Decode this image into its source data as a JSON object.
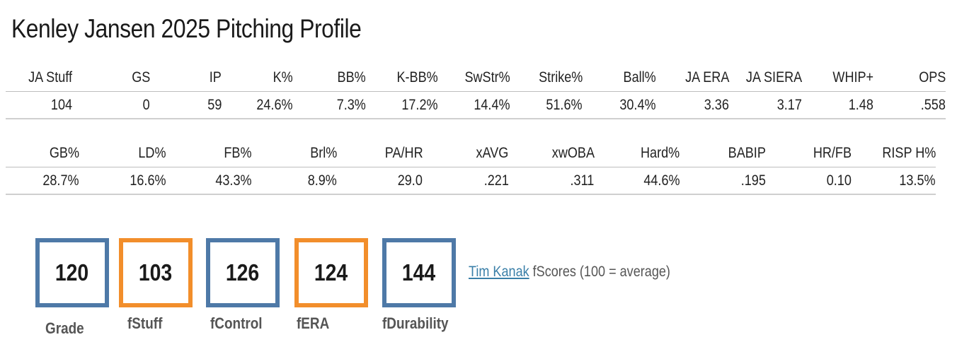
{
  "title": "Kenley Jansen 2025 Pitching Profile",
  "table1": {
    "headers": [
      "JA Stuff",
      "GS",
      "IP",
      "K%",
      "BB%",
      "K-BB%",
      "SwStr%",
      "Strike%",
      "Ball%",
      "JA ERA",
      "JA SIERA",
      "WHIP+",
      "OPS"
    ],
    "values": [
      "104",
      "0",
      "59",
      "24.6%",
      "7.3%",
      "17.2%",
      "14.4%",
      "51.6%",
      "30.4%",
      "3.36",
      "3.17",
      "1.48",
      ".558"
    ]
  },
  "table2": {
    "headers": [
      "GB%",
      "LD%",
      "FB%",
      "Brl%",
      "PA/HR",
      "xAVG",
      "xwOBA",
      "Hard%",
      "BABIP",
      "HR/FB",
      "RISP H%"
    ],
    "values": [
      "28.7%",
      "16.6%",
      "43.3%",
      "8.9%",
      "29.0",
      ".221",
      ".311",
      "44.6%",
      ".195",
      "0.10",
      "13.5%"
    ]
  },
  "scores": [
    {
      "value": "120",
      "label": "Grade",
      "color": "#4e79a7"
    },
    {
      "value": "103",
      "label": "fStuff",
      "color": "#f28e2b"
    },
    {
      "value": "126",
      "label": "fControl",
      "color": "#4e79a7"
    },
    {
      "value": "124",
      "label": "fERA",
      "color": "#f28e2b"
    },
    {
      "value": "144",
      "label": "fDurability",
      "color": "#4e79a7"
    }
  ],
  "note": {
    "link_text": "Tim Kanak",
    "text": " fScores (100 = average)"
  }
}
